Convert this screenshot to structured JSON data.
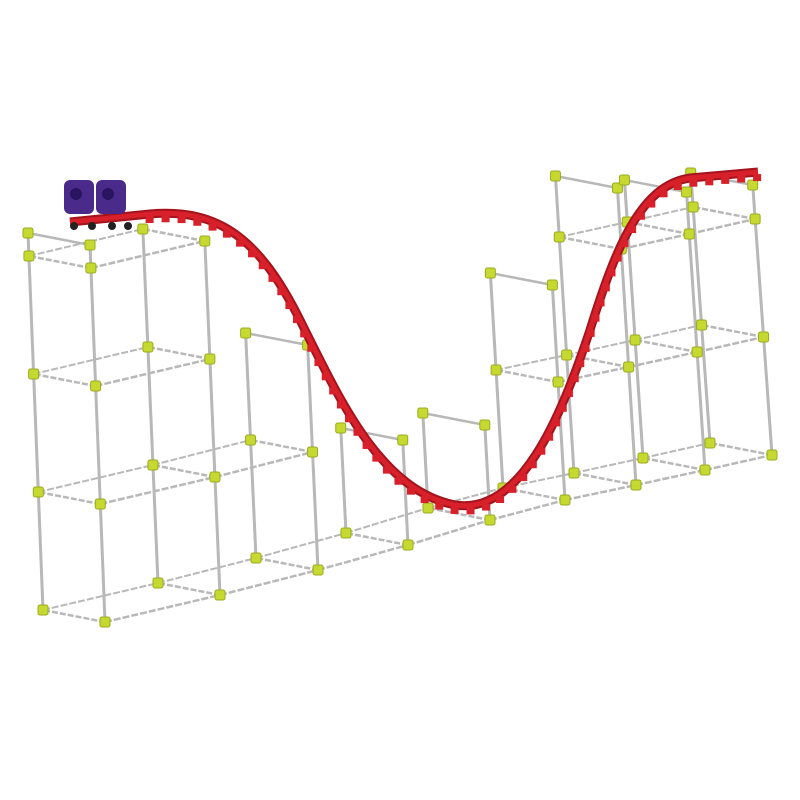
{
  "scene": {
    "subject": "roller-coaster-model",
    "colors": {
      "background": "#ffffff",
      "frame": "#b8b8b8",
      "connector": "#c6d930",
      "track": "#d8202a",
      "track_dark": "#a3141c",
      "cart": "#4a2a8a",
      "wheel": "#222222"
    }
  }
}
